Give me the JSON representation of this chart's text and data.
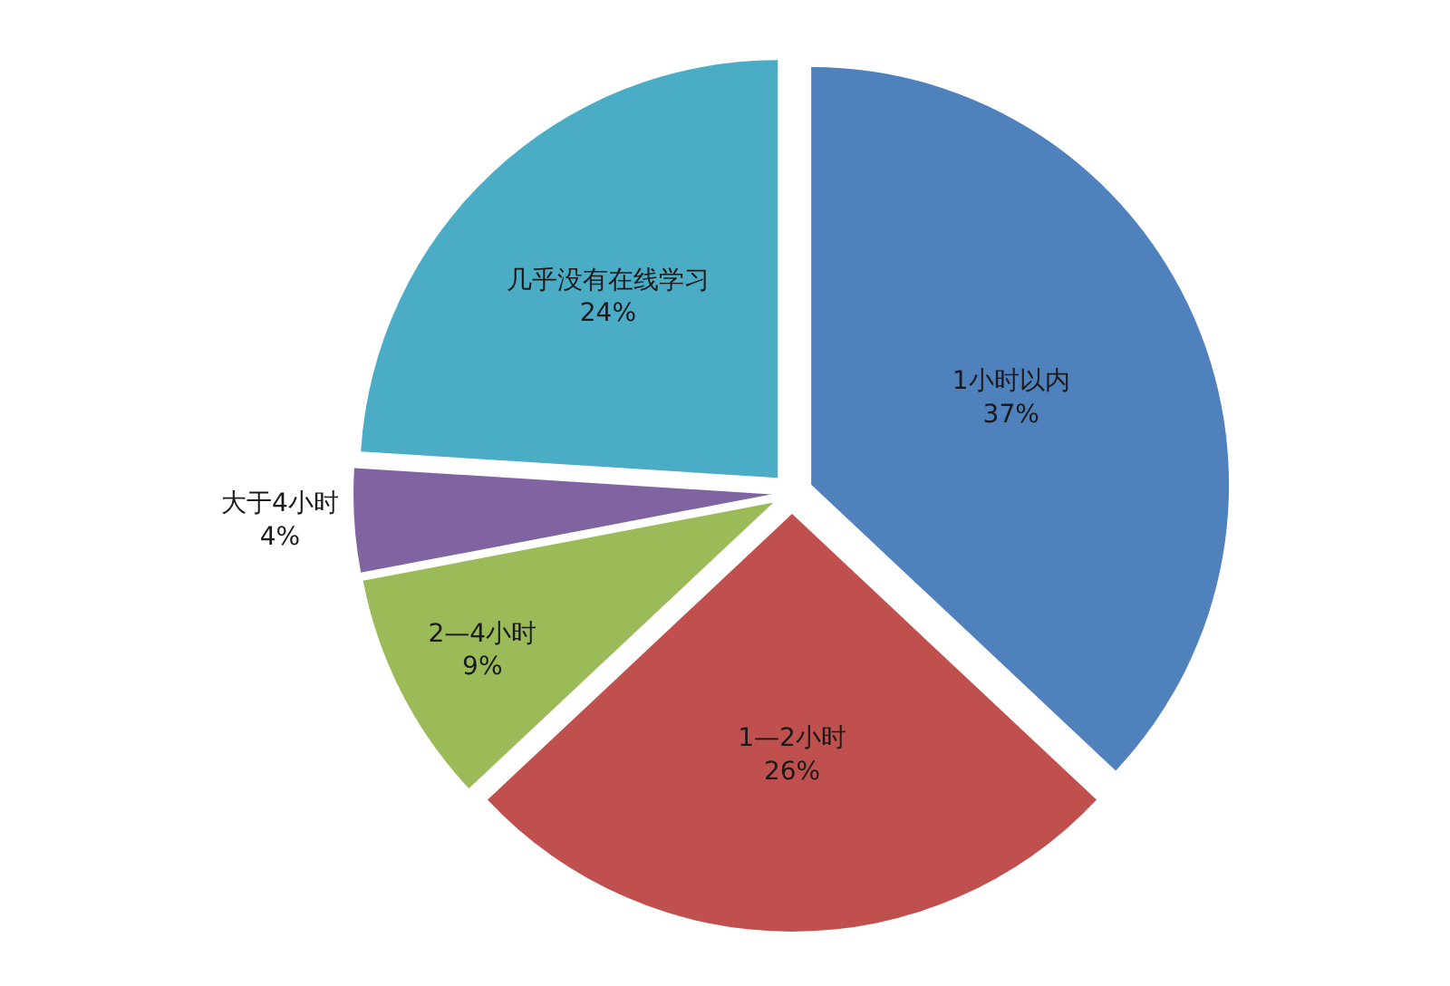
{
  "chart_data": {
    "type": "pie",
    "categories": [
      "1小时以内",
      "1—2小时",
      "2—4小时",
      "大于4小时",
      "几乎没有在线学习"
    ],
    "values": [
      37,
      26,
      9,
      4,
      24
    ],
    "value_labels": [
      "37%",
      "26%",
      "9%",
      "4%",
      "24%"
    ],
    "colors": [
      "#4f81bd",
      "#c0504d",
      "#9bbb59",
      "#8064a2",
      "#4bacc6"
    ],
    "legend": false
  }
}
